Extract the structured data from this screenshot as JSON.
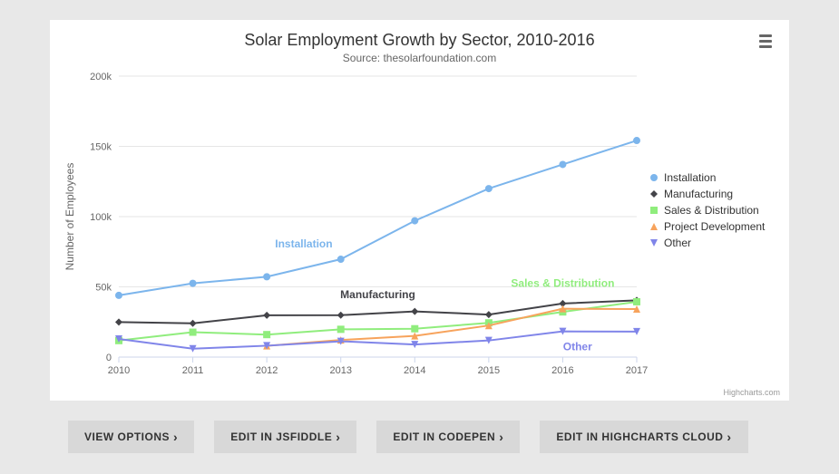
{
  "title": "Solar Employment Growth by Sector, 2010-2016",
  "subtitle": "Source: thesolarfoundation.com",
  "credit": "Highcharts.com",
  "chart": {
    "type": "line",
    "background_color": "#ffffff",
    "grid_color": "#e6e6e6",
    "axis_line_color": "#ccd6eb",
    "tick_color": "#ccd6eb",
    "axis_label_color": "#666666",
    "tick_fontsize": 11,
    "axis_title_fontsize": 12,
    "x": {
      "categories": [
        "2010",
        "2011",
        "2012",
        "2013",
        "2014",
        "2015",
        "2016",
        "2017"
      ],
      "min": 0,
      "max": 7
    },
    "y": {
      "title": "Number of Employees",
      "min": 0,
      "max": 200000,
      "ticks": [
        0,
        50000,
        100000,
        150000,
        200000
      ],
      "tick_labels": [
        "0",
        "50k",
        "100k",
        "150k",
        "200k"
      ]
    },
    "series": [
      {
        "name": "Installation",
        "color": "#7cb5ec",
        "marker": "circle",
        "data": [
          43934,
          52503,
          57177,
          69658,
          97031,
          119931,
          137133,
          154175
        ],
        "label_pos": [
          2.5,
          78000
        ]
      },
      {
        "name": "Manufacturing",
        "color": "#434348",
        "marker": "diamond",
        "data": [
          24916,
          24064,
          29742,
          29851,
          32490,
          30282,
          38121,
          40434
        ],
        "label_pos": [
          3.5,
          42000
        ]
      },
      {
        "name": "Sales & Distribution",
        "color": "#90ed7d",
        "marker": "square",
        "data": [
          11744,
          17722,
          16005,
          19771,
          20185,
          24377,
          32147,
          39387
        ],
        "label_pos": [
          6.0,
          50000
        ]
      },
      {
        "name": "Project Development",
        "color": "#f7a35c",
        "marker": "triangle-up",
        "data": [
          null,
          null,
          7988,
          12169,
          15112,
          22452,
          34400,
          34227
        ],
        "label_pos": null
      },
      {
        "name": "Other",
        "color": "#8085e9",
        "marker": "triangle-down",
        "data": [
          12908,
          5948,
          8105,
          11248,
          8989,
          11816,
          18274,
          18111
        ],
        "label_pos": [
          6.2,
          5000
        ]
      }
    ],
    "line_width": 2,
    "marker_radius": 4,
    "legend": {
      "position": "right",
      "fontsize": 12,
      "text_color": "#333333"
    }
  },
  "buttons": {
    "view_options": "VIEW OPTIONS",
    "jsfiddle": "EDIT IN JSFIDDLE",
    "codepen": "EDIT IN CODEPEN",
    "hc_cloud": "EDIT IN HIGHCHARTS CLOUD"
  }
}
